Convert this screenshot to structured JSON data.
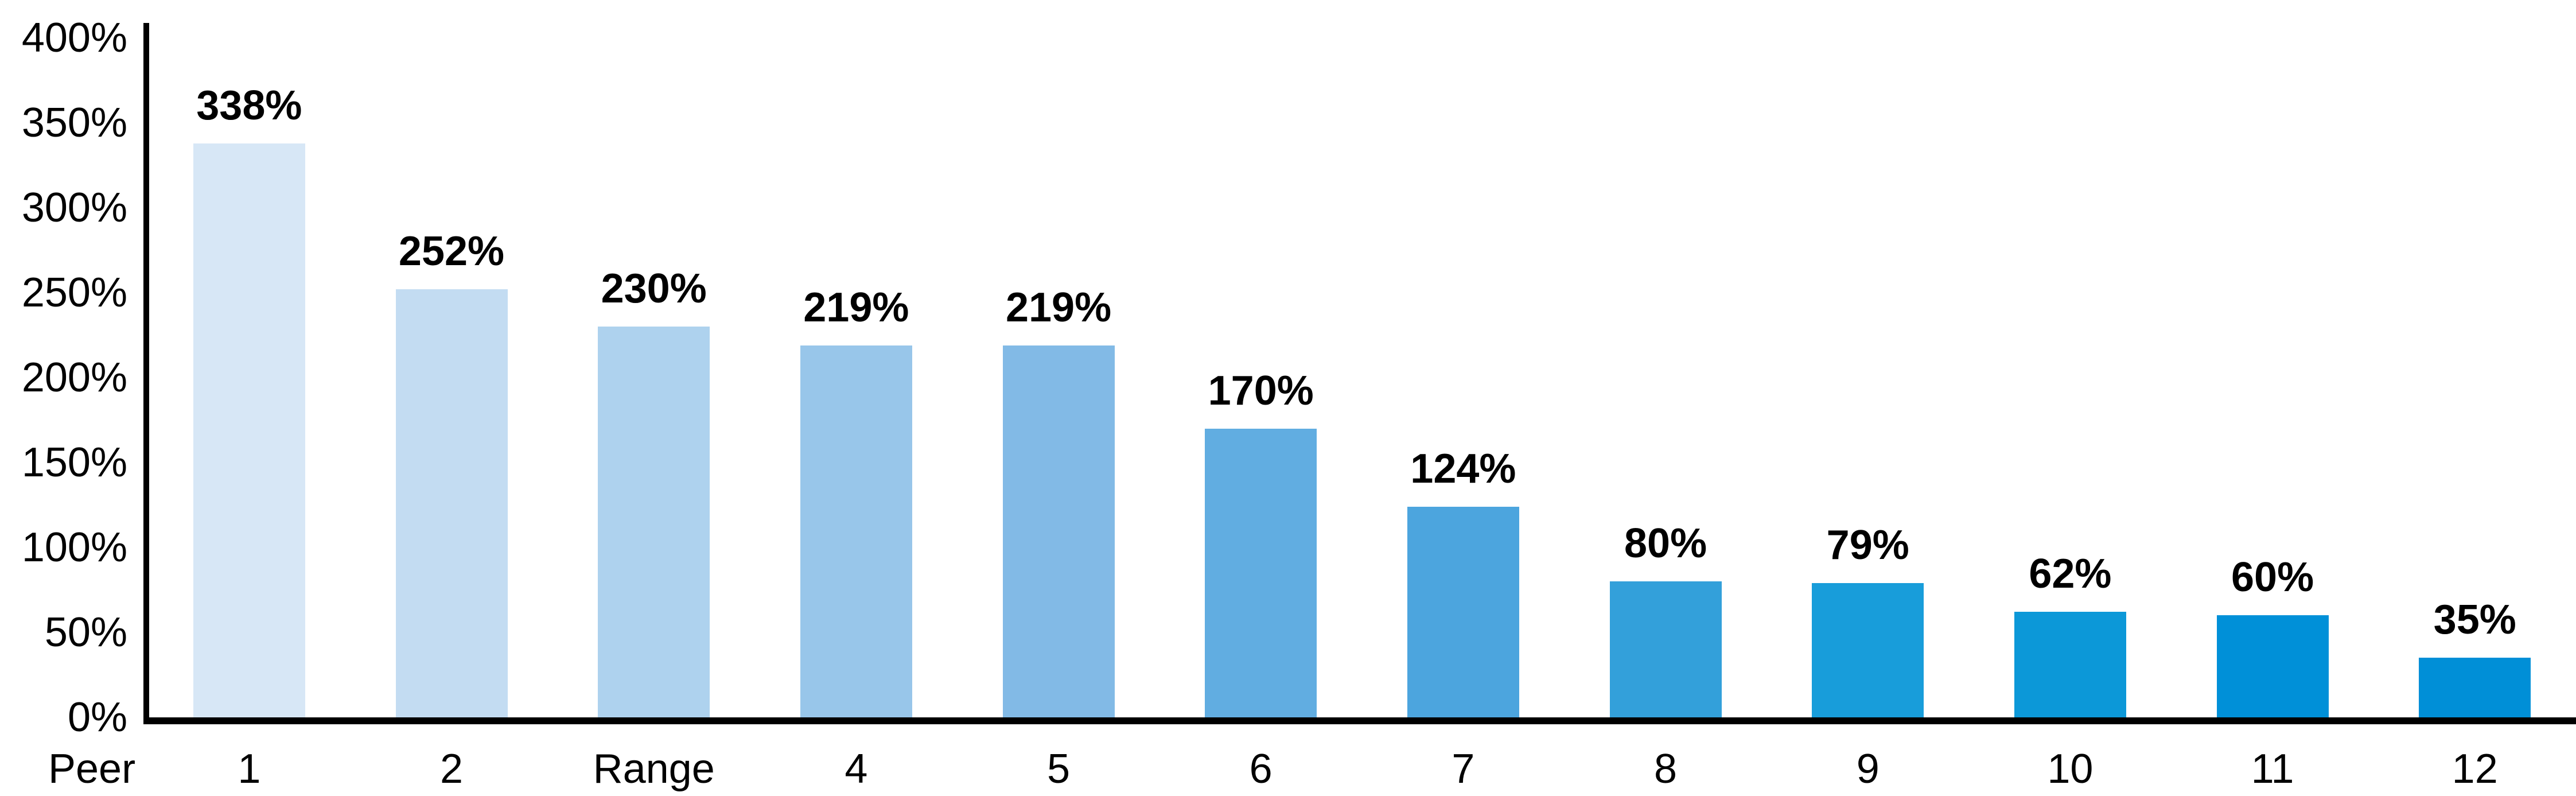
{
  "chart_data": {
    "type": "bar",
    "title": "",
    "x_axis_label": "Peer",
    "categories": [
      "1",
      "2",
      "Range",
      "4",
      "5",
      "6",
      "7",
      "8",
      "9",
      "10",
      "11",
      "12"
    ],
    "values": [
      338,
      252,
      230,
      219,
      219,
      170,
      124,
      80,
      79,
      62,
      60,
      35
    ],
    "value_labels": [
      "338%",
      "252%",
      "230%",
      "219%",
      "219%",
      "170%",
      "124%",
      "80%",
      "79%",
      "62%",
      "60%",
      "35%"
    ],
    "bar_colors": [
      "#d7e7f6",
      "#c3dcf2",
      "#aed2ee",
      "#98c6ea",
      "#82bae6",
      "#61ade1",
      "#4ca5de",
      "#33a0da",
      "#189dda",
      "#0c98d8",
      "#0090d8",
      "#008fd7"
    ],
    "y_axis": {
      "tick_labels": [
        "400%",
        "350%",
        "300%",
        "250%",
        "200%",
        "150%",
        "100%",
        "50%",
        "0%"
      ],
      "min": 0,
      "max": 400
    },
    "grid": false,
    "legend": false,
    "axis_color": "#000000",
    "text_color": "#000000",
    "background_color": "#ffffff"
  }
}
